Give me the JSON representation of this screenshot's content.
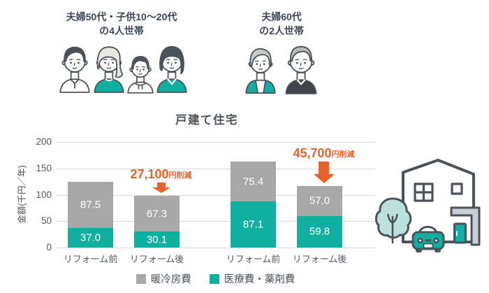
{
  "households": [
    {
      "line1": "夫婦50代・子供10〜20代",
      "line2": "の4人世帯",
      "members": [
        "father",
        "mother",
        "son",
        "daughter"
      ]
    },
    {
      "line1": "夫婦60代",
      "line2": "の2人世帯",
      "members": [
        "grandmother",
        "grandfather"
      ]
    }
  ],
  "chart_data": {
    "type": "bar",
    "stacked": true,
    "title": "戸建て住宅",
    "xlabel": "",
    "ylabel": "金額(千円／年)",
    "ylim": [
      0,
      200
    ],
    "yticks": [
      0,
      50,
      100,
      150,
      200
    ],
    "grid": true,
    "legend_position": "bottom",
    "categories": [
      "リフォーム前",
      "リフォーム後",
      "リフォーム前",
      "リフォーム後"
    ],
    "series": [
      {
        "name": "医療費・薬剤費",
        "color": "#10AFA1",
        "values": [
          37.0,
          30.1,
          87.1,
          59.8
        ]
      },
      {
        "name": "暖冷房費",
        "color": "#A8A8A8",
        "values": [
          87.5,
          67.3,
          75.4,
          57.0
        ]
      }
    ],
    "stack_order": "bottom_to_top",
    "totals": [
      124.5,
      97.4,
      162.5,
      116.8
    ],
    "legend": [
      {
        "name": "暖冷房費",
        "color": "#A8A8A8"
      },
      {
        "name": "医療費・薬剤費",
        "color": "#10AFA1"
      }
    ],
    "annotations": [
      {
        "category_index": 1,
        "amount": "27,100",
        "suffix": "円削減",
        "color": "#E8632B"
      },
      {
        "category_index": 3,
        "amount": "45,700",
        "suffix": "円削減",
        "color": "#E8632B"
      }
    ]
  },
  "icons": {
    "left_group": "family-of-four-illustration",
    "right_group": "elderly-couple-illustration",
    "house": "house-with-car-and-tree-illustration",
    "annotation_arrow": "down-arrow"
  },
  "colors": {
    "teal": "#10AFA1",
    "gray": "#A8A8A8",
    "orange": "#E8632B",
    "outline": "#4C525A",
    "text": "#4A5058",
    "grid": "#DCDCDC",
    "tree": "#BCE0DA",
    "wall_gray": "#C9CED2"
  }
}
